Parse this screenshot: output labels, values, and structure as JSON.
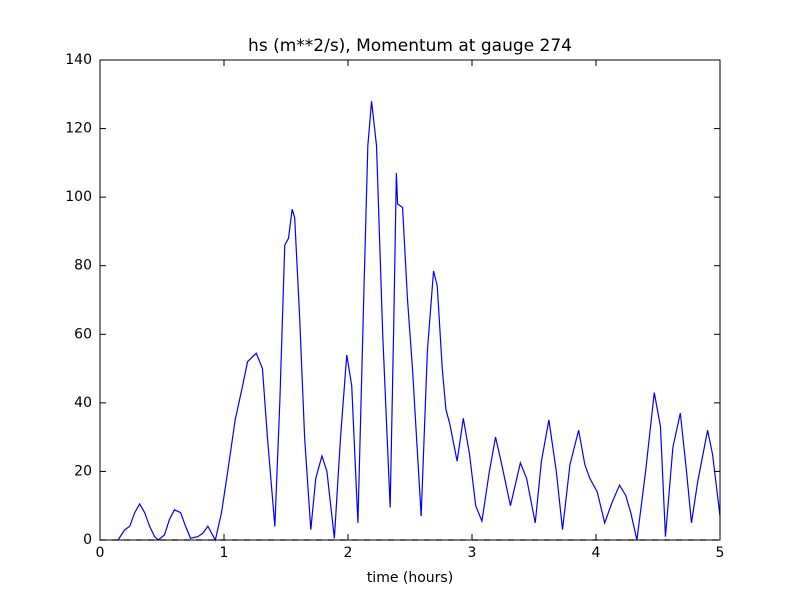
{
  "chart_data": {
    "type": "line",
    "title": "hs (m**2/s), Momentum at gauge 274",
    "xlabel": "time (hours)",
    "xlim": [
      0,
      5
    ],
    "xticks": [
      0,
      1,
      2,
      3,
      4,
      5
    ],
    "ylim": [
      0,
      140
    ],
    "yticks": [
      0,
      20,
      40,
      60,
      80,
      100,
      120,
      140
    ],
    "grid": false,
    "series": [
      {
        "color": "#0000ff",
        "dash": false,
        "x": [
          0.145,
          0.2,
          0.24,
          0.28,
          0.32,
          0.36,
          0.4,
          0.44,
          0.47,
          0.52,
          0.56,
          0.6,
          0.65,
          0.69,
          0.73,
          0.79,
          0.83,
          0.87,
          0.9,
          0.93,
          0.98,
          1.03,
          1.09,
          1.15,
          1.19,
          1.26,
          1.31,
          1.35,
          1.41,
          1.45,
          1.49,
          1.52,
          1.55,
          1.57,
          1.61,
          1.65,
          1.7,
          1.74,
          1.79,
          1.83,
          1.89,
          1.94,
          1.99,
          2.03,
          2.08,
          2.13,
          2.16,
          2.19,
          2.23,
          2.28,
          2.34,
          2.37,
          2.39,
          2.4,
          2.44,
          2.48,
          2.52,
          2.59,
          2.64,
          2.69,
          2.72,
          2.76,
          2.79,
          2.82,
          2.88,
          2.93,
          2.98,
          3.03,
          3.08,
          3.14,
          3.19,
          3.24,
          3.31,
          3.39,
          3.44,
          3.51,
          3.56,
          3.62,
          3.68,
          3.73,
          3.79,
          3.86,
          3.91,
          3.95,
          4.01,
          4.07,
          4.13,
          4.19,
          4.24,
          4.28,
          4.33,
          4.4,
          4.47,
          4.52,
          4.56,
          4.62,
          4.68,
          4.73,
          4.77,
          4.82,
          4.9,
          4.94,
          5.0
        ],
        "values": [
          0,
          3,
          4,
          8,
          10.5,
          8,
          4,
          1,
          0,
          1.5,
          6,
          8.8,
          8,
          4,
          0.5,
          1,
          2,
          4,
          2,
          0,
          8,
          20,
          35,
          45,
          52,
          54.5,
          50,
          30,
          4,
          40,
          86,
          88,
          96.5,
          94,
          65,
          30,
          3,
          18,
          24.5,
          20,
          0.5,
          30,
          54,
          45,
          5,
          75,
          115,
          128,
          115,
          60,
          9.5,
          65,
          107,
          98,
          97,
          70,
          50,
          7,
          55,
          78.5,
          74,
          50,
          38,
          34,
          23,
          35.5,
          25,
          10,
          5.5,
          20,
          30,
          22,
          10,
          22.5,
          18,
          5,
          23,
          35,
          20,
          3,
          22,
          32,
          22,
          18,
          14,
          5,
          11,
          16,
          13,
          8,
          0,
          20,
          43,
          33,
          1,
          27,
          37,
          20,
          5,
          17,
          32,
          25,
          7
        ]
      },
      {
        "color": "#000000",
        "dash": true,
        "x": [
          0,
          5
        ],
        "values": [
          0,
          0
        ]
      }
    ]
  }
}
